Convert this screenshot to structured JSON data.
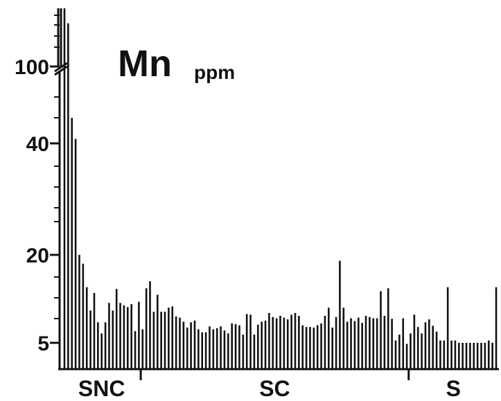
{
  "chart_data": {
    "type": "bar",
    "title": "Mn",
    "unit": "ppm",
    "y_ticks": [
      "100",
      "40",
      "20",
      "5"
    ],
    "y_tick_values": [
      100,
      40,
      20,
      5
    ],
    "axis_break": true,
    "groups": [
      {
        "label": "SNC",
        "start": 0,
        "end": 20
      },
      {
        "label": "SC",
        "start": 21,
        "end": 92
      },
      {
        "label": "S",
        "start": 93,
        "end": 116
      }
    ],
    "values": [
      130,
      120,
      57,
      43,
      20,
      18.5,
      14.5,
      10.5,
      13.5,
      8.5,
      6.6,
      8.5,
      11.8,
      10.5,
      14.2,
      11.8,
      11.4,
      11.1,
      11.6,
      7,
      12,
      7.3,
      14.3,
      15.5,
      10.3,
      13.2,
      10.3,
      10.3,
      11,
      11.2,
      9.5,
      9.3,
      8.6,
      7.6,
      8.5,
      8.8,
      7.3,
      6.8,
      6.8,
      7.8,
      7.3,
      7.5,
      7.8,
      7.1,
      6.6,
      8.3,
      8.2,
      8,
      6.4,
      9.9,
      9.8,
      6.4,
      8.1,
      8.6,
      8.8,
      10.1,
      9.4,
      9.2,
      9.6,
      9.3,
      9,
      9.8,
      10.1,
      9.6,
      8,
      7.7,
      7.7,
      7.6,
      8,
      8.3,
      9.6,
      11,
      7.6,
      9.4,
      19,
      11,
      8.6,
      9.2,
      8.7,
      9.3,
      8.4,
      9.6,
      9.4,
      9.2,
      9.2,
      13.8,
      9.6,
      14.3,
      9.1,
      5.4,
      6.4,
      9.2,
      4.8,
      6.6,
      9.8,
      7.7,
      6.6,
      8.5,
      9,
      7.9,
      6.9,
      5.4,
      5.4,
      14.5,
      5.4,
      5.4,
      5,
      5,
      5,
      5,
      5,
      5,
      5,
      5,
      5.4,
      5,
      14.5
    ]
  }
}
